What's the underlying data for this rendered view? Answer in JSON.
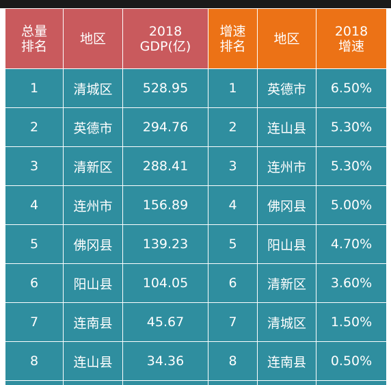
{
  "colors": {
    "header_red": "#c95a5d",
    "header_orange": "#ec7216",
    "cell_teal": "#2f8e9f",
    "top_bar": "#1a1a1a"
  },
  "headers": {
    "gdp_rank": "总量\n排名",
    "gdp_region": "地区",
    "gdp_value": "2018\nGDP(亿)",
    "growth_rank": "增速\n排名",
    "growth_region": "地区",
    "growth_value": "2018\n增速"
  },
  "rows": [
    {
      "gdp_rank": "1",
      "gdp_region": "清城区",
      "gdp_value": "528.95",
      "growth_rank": "1",
      "growth_region": "英德市",
      "growth_value": "6.50%"
    },
    {
      "gdp_rank": "2",
      "gdp_region": "英德市",
      "gdp_value": "294.76",
      "growth_rank": "2",
      "growth_region": "连山县",
      "growth_value": "5.30%"
    },
    {
      "gdp_rank": "3",
      "gdp_region": "清新区",
      "gdp_value": "288.41",
      "growth_rank": "3",
      "growth_region": "连州市",
      "growth_value": "5.30%"
    },
    {
      "gdp_rank": "4",
      "gdp_region": "连州市",
      "gdp_value": "156.89",
      "growth_rank": "4",
      "growth_region": "佛冈县",
      "growth_value": "5.00%"
    },
    {
      "gdp_rank": "5",
      "gdp_region": "佛冈县",
      "gdp_value": "139.23",
      "growth_rank": "5",
      "growth_region": "阳山县",
      "growth_value": "4.70%"
    },
    {
      "gdp_rank": "6",
      "gdp_region": "阳山县",
      "gdp_value": "104.05",
      "growth_rank": "6",
      "growth_region": "清新区",
      "growth_value": "3.60%"
    },
    {
      "gdp_rank": "7",
      "gdp_region": "连南县",
      "gdp_value": "45.67",
      "growth_rank": "7",
      "growth_region": "清城区",
      "growth_value": "1.50%"
    },
    {
      "gdp_rank": "8",
      "gdp_region": "连山县",
      "gdp_value": "34.36",
      "growth_rank": "8",
      "growth_region": "连南县",
      "growth_value": "0.50%"
    }
  ]
}
